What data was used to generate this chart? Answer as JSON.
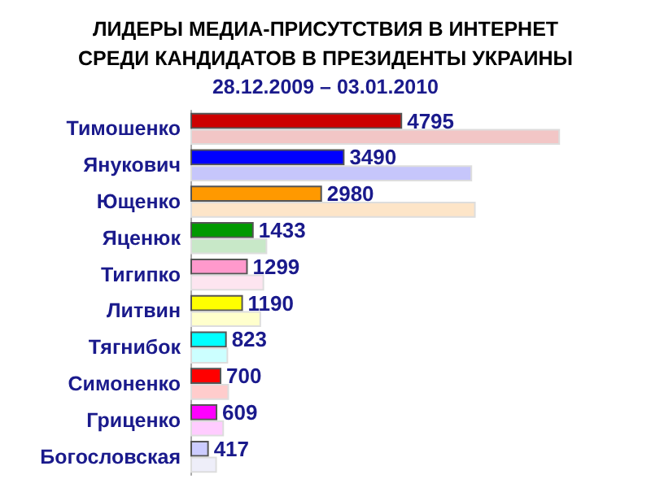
{
  "chart_data": {
    "type": "bar",
    "orientation": "horizontal",
    "title": "ЛИДЕРЫ МЕДИА-ПРИСУТСТВИЯ В ИНТЕРНЕТ СРЕДИ КАНДИДАТОВ В ПРЕЗИДЕНТЫ УКРАИНЫ",
    "subtitle": "28.12.2009 – 03.01.2010",
    "categories": [
      "Тимошенко",
      "Янукович",
      "Ющенко",
      "Яценюк",
      "Тигипко",
      "Литвин",
      "Тягнибок",
      "Симоненко",
      "Гриценко",
      "Богословская"
    ],
    "series": [
      {
        "colors": [
          "#cc0000",
          "#0000ff",
          "#ff9900",
          "#009900",
          "#ff99cc",
          "#ffff00",
          "#00ffff",
          "#ff0000",
          "#ff00ff",
          "#ccccff"
        ],
        "values": [
          4795,
          3490,
          2980,
          1433,
          1299,
          1190,
          823,
          700,
          609,
          417
        ],
        "value_labels": [
          "4795",
          "3490",
          "2980",
          "1433",
          "1299",
          "1190",
          "823",
          "700",
          "609",
          "417"
        ]
      },
      {
        "colors": [
          "#f2c6c6",
          "#c6c6fb",
          "#fde5c8",
          "#c8e8c8",
          "#fde5f0",
          "#ffffcc",
          "#ccffff",
          "#ffcccc",
          "#ffccff",
          "#eeeef9"
        ],
        "values": [
          8370,
          6380,
          6460,
          1740,
          1670,
          1600,
          855,
          875,
          760,
          600
        ]
      }
    ],
    "data_labels": false
  }
}
